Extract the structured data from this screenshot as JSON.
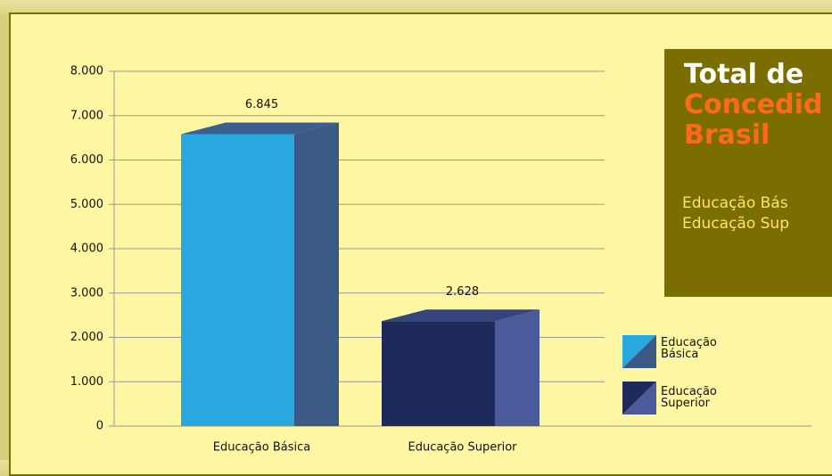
{
  "chart_data": {
    "type": "bar3d",
    "categories": [
      "Educação Básica",
      "Educação Superior"
    ],
    "values": [
      6845,
      2628
    ],
    "value_labels": [
      "6.845",
      "2.628"
    ],
    "colors": [
      {
        "front": "#29a8e0",
        "side": "#3a5a85",
        "top": "#3d5f8f"
      },
      {
        "front": "#1f2a5c",
        "side": "#4a5a9a",
        "top": "#34447f"
      }
    ],
    "ylim": [
      0,
      8000
    ],
    "yticks": [
      0,
      {
        "value": 1000,
        "label": "1.000"
      },
      {
        "value": 2000,
        "label": "2.000"
      },
      {
        "value": 3000,
        "label": "3.000"
      },
      {
        "value": 4000,
        "label": "4.000"
      },
      {
        "value": 5000,
        "label": "5.000"
      },
      {
        "value": 6000,
        "label": "6.000"
      },
      {
        "value": 7000,
        "label": "7.000"
      },
      {
        "value": 8000,
        "label": "8.000"
      }
    ],
    "grid": true
  },
  "panel": {
    "title_lines": [
      "Total de",
      "Concedid",
      "Brasil"
    ],
    "lines": [
      "Educação Bás",
      "Educação Sup"
    ]
  }
}
